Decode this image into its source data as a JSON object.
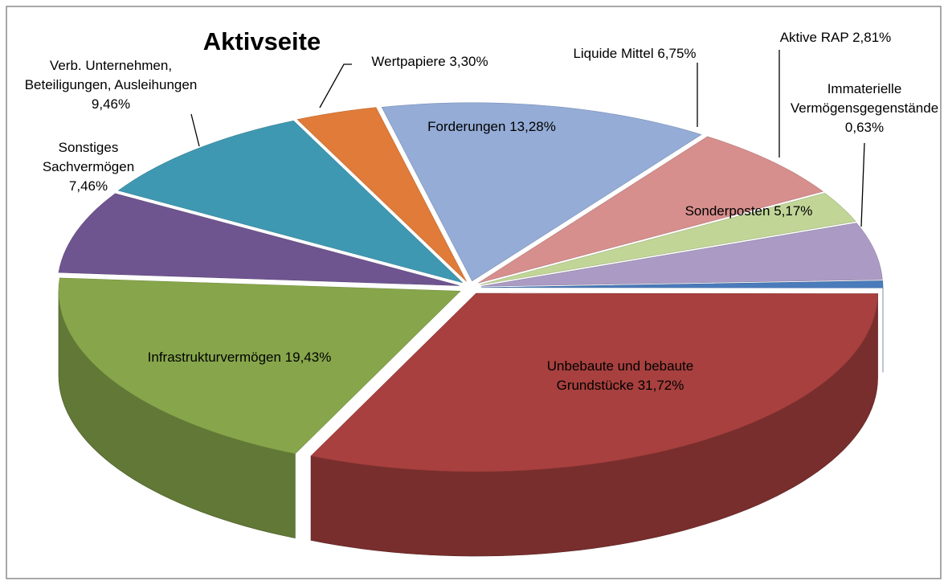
{
  "chart_data": {
    "type": "pie3d",
    "title": "Aktivseite",
    "categories": [
      "Forderungen",
      "Liquide Mittel",
      "Aktive RAP",
      "Sonderposten",
      "Immaterielle Vermögensgegenstände",
      "Unbebaute und bebaute Grundstücke",
      "Infrastrukturvermögen",
      "Sonstiges Sachvermögen",
      "Verb. Unternehmen, Beteiligungen, Ausleihungen",
      "Wertpapiere"
    ],
    "values": [
      13.28,
      6.75,
      2.81,
      5.17,
      0.63,
      31.72,
      19.43,
      7.46,
      9.46,
      3.3
    ],
    "value_labels": [
      "13,28%",
      "6,75%",
      "2,81%",
      "5,17%",
      "0,63%",
      "31,72%",
      "19,43%",
      "7,46%",
      "9,46%",
      "3,30%"
    ],
    "colors": [
      "#94acd6",
      "#d68f8d",
      "#c1d597",
      "#ab9bc4",
      "#4a7bbb",
      "#a7403e",
      "#87a64b",
      "#6f5590",
      "#3f98b1",
      "#e07b39"
    ]
  }
}
